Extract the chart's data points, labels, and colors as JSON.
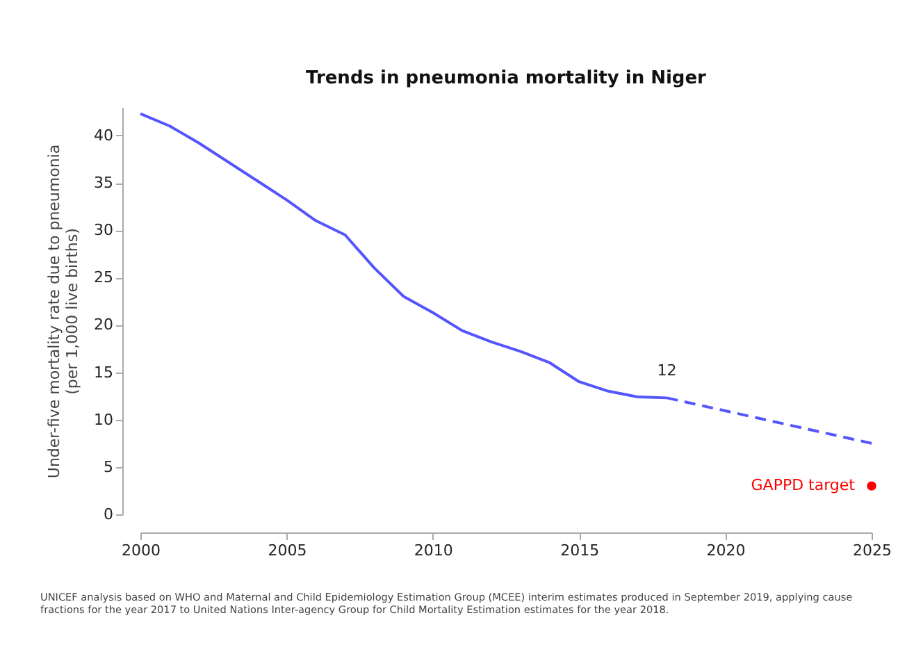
{
  "chart_data": {
    "type": "line",
    "title": "Trends in pneumonia mortality in Niger",
    "ylabel": "Under-five mortality rate due to pneumonia\n(per 1,000 live births)",
    "xlim": [
      2000,
      2025
    ],
    "xticks": [
      2000,
      2005,
      2010,
      2015,
      2020,
      2025
    ],
    "ylim": [
      0,
      43
    ],
    "yticks": [
      0,
      5,
      10,
      15,
      20,
      25,
      30,
      35,
      40
    ],
    "grid": false,
    "marker": "none",
    "series": [
      {
        "color": "#5555ff",
        "line_style": "solid",
        "x": [
          2000,
          2001,
          2002,
          2003,
          2004,
          2005,
          2006,
          2007,
          2008,
          2009,
          2010,
          2011,
          2012,
          2013,
          2014,
          2015,
          2016,
          2017,
          2018
        ],
        "values": [
          42.3,
          41,
          39.2,
          37.2,
          35.2,
          33.2,
          31,
          29.5,
          26,
          23,
          21.3,
          19.4,
          18.2,
          17.2,
          16,
          14,
          13,
          12.4,
          12.3
        ]
      },
      {
        "color": "#5555ff",
        "line_style": "dashed",
        "x": [
          2018,
          2025
        ],
        "values": [
          12.3,
          7.5
        ]
      },
      {
        "type": "scatter",
        "name": "GAPPD target",
        "color": "#ff0000",
        "marker": "circle",
        "x": [
          2025
        ],
        "values": [
          3
        ]
      }
    ],
    "annotations": [
      {
        "text": "12",
        "x": 2018,
        "y": 12.3
      },
      "UNICEF analysis based on WHO and Maternal and Child Epidemiology Estimation Group (MCEE) interim estimates produced in September 2019, applying cause fractions for the year 2017 to United Nations Inter-agency Group for Child Mortality Estimation estimates for the year 2018."
    ]
  }
}
